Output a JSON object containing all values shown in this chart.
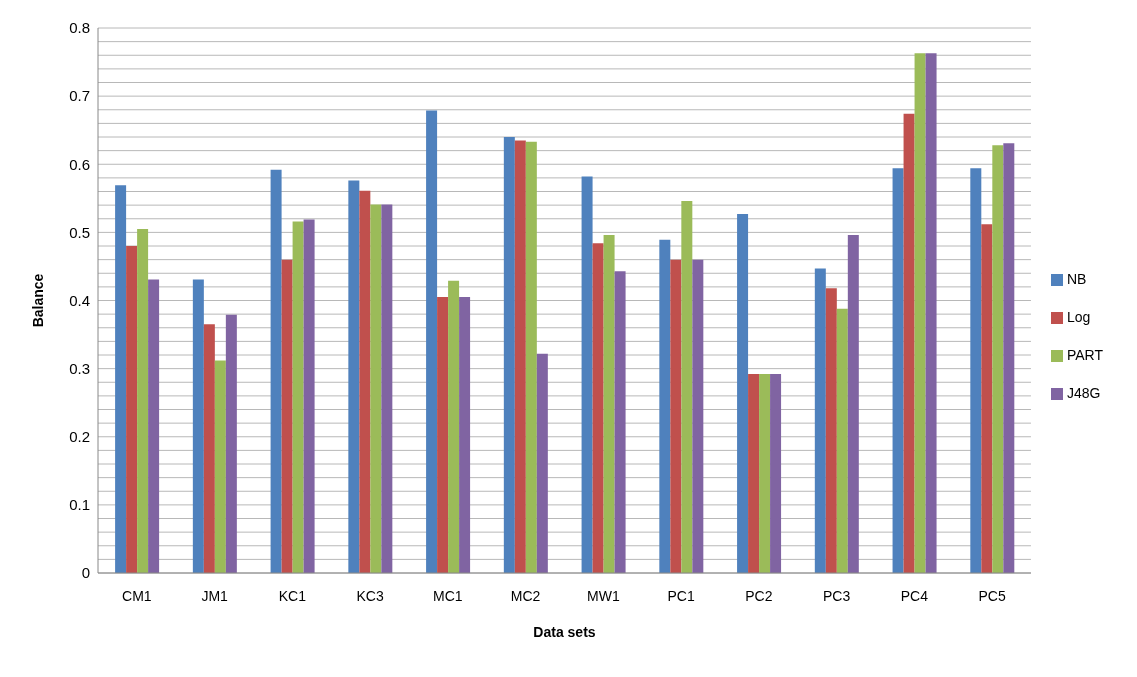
{
  "chart_data": {
    "type": "bar",
    "xlabel": "Data sets",
    "ylabel": "Balance",
    "categories": [
      "CM1",
      "JM1",
      "KC1",
      "KC3",
      "MC1",
      "MC2",
      "MW1",
      "PC1",
      "PC2",
      "PC3",
      "PC4",
      "PC5"
    ],
    "series": [
      {
        "name": "NB",
        "color": "#4f81bd",
        "values": [
          0.569,
          0.431,
          0.592,
          0.576,
          0.679,
          0.64,
          0.582,
          0.489,
          0.527,
          0.447,
          0.594,
          0.594
        ]
      },
      {
        "name": "Log",
        "color": "#c0504d",
        "values": [
          0.48,
          0.365,
          0.46,
          0.561,
          0.405,
          0.635,
          0.484,
          0.46,
          0.292,
          0.418,
          0.674,
          0.512
        ]
      },
      {
        "name": "PART",
        "color": "#9bbb59",
        "values": [
          0.505,
          0.312,
          0.516,
          0.541,
          0.429,
          0.633,
          0.496,
          0.546,
          0.292,
          0.388,
          0.763,
          0.628
        ]
      },
      {
        "name": "J48G",
        "color": "#8064a2",
        "values": [
          0.431,
          0.379,
          0.519,
          0.541,
          0.405,
          0.322,
          0.443,
          0.46,
          0.292,
          0.496,
          0.763,
          0.631
        ]
      }
    ],
    "ylim": [
      0,
      0.8
    ],
    "yticks": [
      0,
      {
        "value": 0.02,
        "label": null
      },
      {
        "value": 0.04,
        "label": null
      },
      {
        "value": 0.06,
        "label": null
      },
      {
        "value": 0.08,
        "label": null
      },
      0.1,
      {
        "value": 0.12,
        "label": null
      },
      {
        "value": 0.14,
        "label": null
      },
      {
        "value": 0.16,
        "label": null
      },
      {
        "value": 0.18,
        "label": null
      },
      0.2,
      {
        "value": 0.22,
        "label": null
      },
      {
        "value": 0.24,
        "label": null
      },
      {
        "value": 0.26,
        "label": null
      },
      {
        "value": 0.28,
        "label": null
      },
      0.3,
      {
        "value": 0.32,
        "label": null
      },
      {
        "value": 0.34,
        "label": null
      },
      {
        "value": 0.36,
        "label": null
      },
      {
        "value": 0.38,
        "label": null
      },
      0.4,
      {
        "value": 0.42,
        "label": null
      },
      {
        "value": 0.44,
        "label": null
      },
      {
        "value": 0.46,
        "label": null
      },
      {
        "value": 0.48,
        "label": null
      },
      0.5,
      {
        "value": 0.52,
        "label": null
      },
      {
        "value": 0.54,
        "label": null
      },
      {
        "value": 0.56,
        "label": null
      },
      {
        "value": 0.58,
        "label": null
      },
      0.6,
      {
        "value": 0.62,
        "label": null
      },
      {
        "value": 0.64,
        "label": null
      },
      {
        "value": 0.66,
        "label": null
      },
      {
        "value": 0.68,
        "label": null
      },
      0.7,
      {
        "value": 0.72,
        "label": null
      },
      {
        "value": 0.74,
        "label": null
      },
      {
        "value": 0.76,
        "label": null
      },
      {
        "value": 0.78,
        "label": null
      },
      0.8
    ],
    "grid": "y",
    "legend": "right"
  }
}
